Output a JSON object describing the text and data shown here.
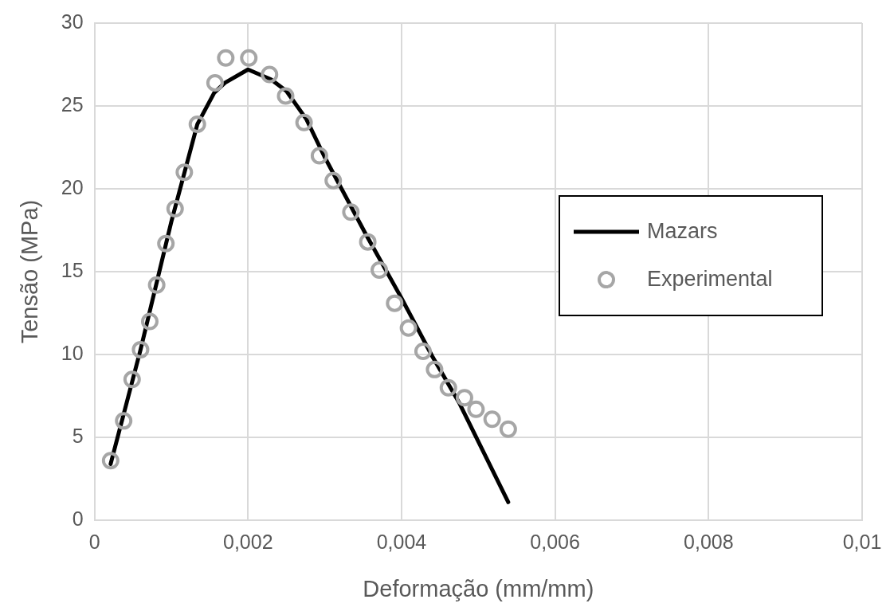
{
  "chart_data": {
    "type": "scatter",
    "xlabel": "Deformação (mm/mm)",
    "ylabel": "Tensão (MPa)",
    "xlim": [
      0,
      0.01
    ],
    "xticks": [
      0,
      {
        "value": 0.002,
        "label": "0,002"
      },
      {
        "value": 0.004,
        "label": "0,004"
      },
      {
        "value": 0.006,
        "label": "0,006"
      },
      {
        "value": 0.008,
        "label": "0,008"
      },
      {
        "value": 0.01,
        "label": "0,01"
      }
    ],
    "ylim": [
      0,
      30
    ],
    "yticks": [
      0,
      5,
      10,
      15,
      20,
      25,
      30
    ],
    "grid": true,
    "legend": "right",
    "series": [
      {
        "name": "Mazars",
        "type": "line",
        "color": "#000000",
        "marker": "none",
        "line_style": "solid",
        "x": [
          0.00021,
          0.0006,
          0.001,
          0.00134,
          0.00156,
          0.0017,
          0.002,
          0.0023,
          0.0025,
          0.00276,
          0.003,
          0.00353,
          0.004,
          0.0044,
          0.00475,
          0.00539
        ],
        "values": [
          3.4,
          10.3,
          18,
          23.9,
          25.8,
          26.4,
          27.2,
          26.6,
          25.9,
          24.2,
          21.9,
          17.3,
          13.4,
          9.9,
          7.1,
          1.1
        ]
      },
      {
        "name": "Experimental",
        "type": "scatter",
        "color": "#a6a6a6",
        "marker": "circle",
        "x": [
          0.00021,
          0.00038,
          0.00049,
          0.0006,
          0.00072,
          0.00081,
          0.00093,
          0.00105,
          0.00117,
          0.00134,
          0.00157,
          0.00171,
          0.00201,
          0.00228,
          0.00249,
          0.00273,
          0.00293,
          0.00311,
          0.00334,
          0.00356,
          0.00371,
          0.00391,
          0.00409,
          0.00428,
          0.00443,
          0.00461,
          0.00482,
          0.00497,
          0.00518,
          0.00539
        ],
        "values": [
          3.6,
          6.0,
          8.5,
          10.3,
          12.0,
          14.2,
          16.7,
          18.8,
          21.0,
          23.9,
          26.4,
          27.9,
          27.9,
          26.9,
          25.6,
          24.0,
          22.0,
          20.5,
          18.6,
          16.8,
          15.1,
          13.1,
          11.6,
          10.2,
          9.1,
          8.0,
          7.4,
          6.7,
          6.1,
          5.5
        ]
      }
    ]
  }
}
